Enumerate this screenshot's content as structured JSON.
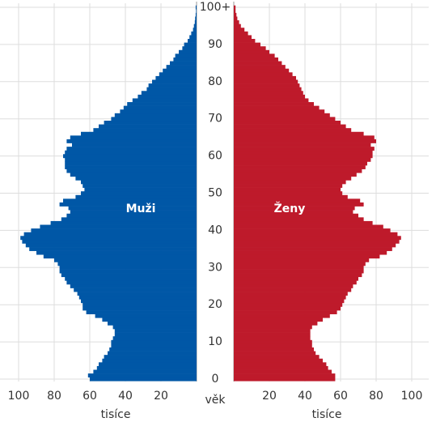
{
  "chart_data": {
    "type": "pyramid",
    "ylabel": "věk",
    "xlabel": "tisíce",
    "y": [
      0,
      1,
      2,
      3,
      4,
      5,
      6,
      7,
      8,
      9,
      10,
      11,
      12,
      13,
      14,
      15,
      16,
      17,
      18,
      19,
      20,
      21,
      22,
      23,
      24,
      25,
      26,
      27,
      28,
      29,
      30,
      31,
      32,
      33,
      34,
      35,
      36,
      37,
      38,
      39,
      40,
      41,
      42,
      43,
      44,
      45,
      46,
      47,
      48,
      49,
      50,
      51,
      52,
      53,
      54,
      55,
      56,
      57,
      58,
      59,
      60,
      61,
      62,
      63,
      64,
      65,
      66,
      67,
      68,
      69,
      70,
      71,
      72,
      73,
      74,
      75,
      76,
      77,
      78,
      79,
      80,
      81,
      82,
      83,
      84,
      85,
      86,
      87,
      88,
      89,
      90,
      91,
      92,
      93,
      94,
      95,
      96,
      97,
      98,
      99,
      100
    ],
    "ylim": [
      0,
      100
    ],
    "yticks": [
      0,
      10,
      20,
      30,
      40,
      50,
      60,
      70,
      80,
      90,
      {
        "value": 100,
        "label": "100+"
      }
    ],
    "xlim": [
      0,
      100
    ],
    "xticks": [
      20,
      40,
      60,
      80,
      100
    ],
    "grid": true,
    "series": [
      {
        "name": "Muži",
        "color": "#0057a6",
        "side": "left",
        "values": [
          60,
          61,
          58,
          56,
          55,
          53,
          52,
          50,
          49,
          48,
          48,
          47,
          46,
          46,
          47,
          50,
          53,
          57,
          62,
          64,
          64,
          65,
          66,
          67,
          69,
          71,
          73,
          74,
          76,
          77,
          77,
          78,
          80,
          86,
          90,
          94,
          96,
          98,
          99,
          97,
          93,
          88,
          82,
          76,
          73,
          71,
          72,
          77,
          75,
          68,
          65,
          63,
          64,
          65,
          68,
          71,
          73,
          74,
          74,
          74,
          75,
          74,
          73,
          70,
          73,
          71,
          65,
          58,
          55,
          52,
          48,
          46,
          43,
          41,
          39,
          36,
          33,
          31,
          28,
          27,
          25,
          23,
          21,
          19,
          17,
          15,
          13,
          12,
          10,
          8,
          7,
          5,
          4,
          3,
          2,
          1.5,
          1,
          0.8,
          0.5,
          0.3,
          0.5
        ]
      },
      {
        "name": "Ženy",
        "color": "#be1a2b",
        "side": "right",
        "values": [
          57,
          57,
          55,
          53,
          52,
          50,
          48,
          46,
          45,
          44,
          44,
          43,
          43,
          43,
          44,
          47,
          50,
          54,
          58,
          60,
          61,
          62,
          63,
          64,
          66,
          67,
          69,
          70,
          72,
          73,
          73,
          74,
          76,
          82,
          86,
          89,
          91,
          93,
          94,
          92,
          88,
          84,
          78,
          73,
          70,
          67,
          68,
          73,
          71,
          64,
          61,
          60,
          61,
          63,
          66,
          69,
          72,
          74,
          75,
          77,
          78,
          78,
          79,
          77,
          80,
          79,
          73,
          66,
          63,
          60,
          57,
          54,
          51,
          48,
          45,
          42,
          40,
          39,
          38,
          37,
          36,
          35,
          33,
          31,
          29,
          27,
          25,
          23,
          20,
          18,
          15,
          12,
          10,
          8,
          6,
          4,
          3,
          2,
          1.5,
          1,
          1
        ]
      }
    ]
  }
}
